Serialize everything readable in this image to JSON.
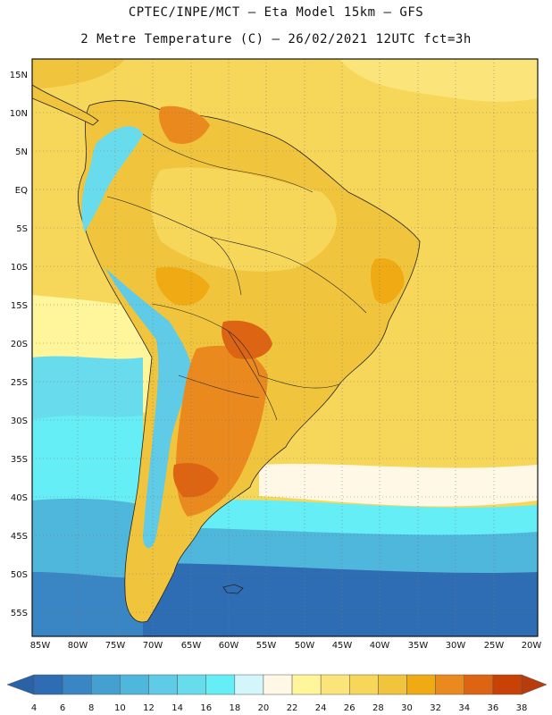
{
  "header": {
    "title_line1": "CPTEC/INPE/MCT –  Eta Model 15km – GFS",
    "title_line2": "2 Metre Temperature (C) – 26/02/2021 12UTC fct=3h"
  },
  "map": {
    "region": "South America",
    "lat_labels": [
      "15N",
      "10N",
      "5N",
      "EQ",
      "5S",
      "10S",
      "15S",
      "20S",
      "25S",
      "30S",
      "35S",
      "40S",
      "45S",
      "50S",
      "55S"
    ],
    "lon_labels": [
      "85W",
      "80W",
      "75W",
      "70W",
      "65W",
      "60W",
      "55W",
      "50W",
      "45W",
      "40W",
      "35W",
      "30W",
      "25W",
      "20W"
    ]
  },
  "colorbar": {
    "labels": [
      "4",
      "6",
      "8",
      "10",
      "12",
      "14",
      "16",
      "18",
      "20",
      "22",
      "24",
      "26",
      "28",
      "30",
      "32",
      "34",
      "36",
      "38"
    ],
    "colors": [
      "#2e6db4",
      "#3a86c4",
      "#45a0d2",
      "#4fb6dc",
      "#5fcbe6",
      "#68dced",
      "#66eef6",
      "#d2f6fa",
      "#fff8e6",
      "#fff59a",
      "#fbe57a",
      "#f6d75a",
      "#f0c43c",
      "#f0aa14",
      "#e9891e",
      "#dd6412",
      "#c84208"
    ],
    "low_arrow_color": "#2a62a8",
    "high_arrow_color": "#b83c0c"
  }
}
